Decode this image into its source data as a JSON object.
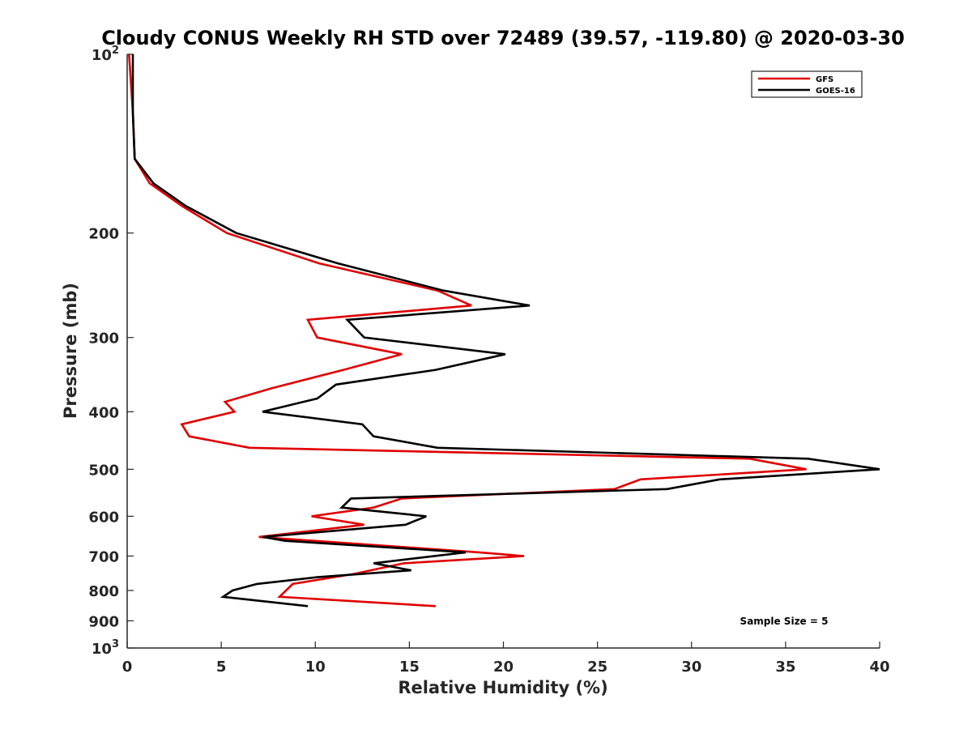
{
  "chart_data": {
    "type": "line",
    "title": "Cloudy CONUS Weekly RH STD over 72489 (39.57, -119.80) @ 2020-03-30",
    "xlabel": "Relative Humidity (%)",
    "ylabel": "Pressure (mb)",
    "xlim": [
      0,
      40
    ],
    "ylim": [
      100,
      1000
    ],
    "y_scale": "log",
    "y_reversed": true,
    "x_ticks": [
      "0",
      "5",
      "10",
      "15",
      "20",
      "25",
      "30",
      "35",
      "40"
    ],
    "y_ticks": [
      {
        "value": 100,
        "base": "10",
        "exp": "2"
      },
      {
        "value": 200,
        "label": "200"
      },
      {
        "value": 300,
        "label": "300"
      },
      {
        "value": 400,
        "label": "400"
      },
      {
        "value": 500,
        "label": "500"
      },
      {
        "value": 600,
        "label": "600"
      },
      {
        "value": 700,
        "label": "700"
      },
      {
        "value": 800,
        "label": "800"
      },
      {
        "value": 900,
        "label": "900"
      },
      {
        "value": 1000,
        "base": "10",
        "exp": "3"
      }
    ],
    "legend_position": "top-right",
    "grid": false,
    "series": [
      {
        "name": "GFS",
        "color": "#e00000",
        "points": [
          [
            0.1,
            100
          ],
          [
            0.3,
            125
          ],
          [
            0.4,
            150
          ],
          [
            1.2,
            165
          ],
          [
            2.9,
            180
          ],
          [
            5.3,
            200
          ],
          [
            10.2,
            225
          ],
          [
            16.5,
            250
          ],
          [
            18.3,
            265
          ],
          [
            9.6,
            280
          ],
          [
            10.1,
            300
          ],
          [
            14.6,
            320
          ],
          [
            11.5,
            340
          ],
          [
            7.7,
            365
          ],
          [
            5.2,
            385
          ],
          [
            5.7,
            400
          ],
          [
            2.9,
            420
          ],
          [
            3.3,
            440
          ],
          [
            6.5,
            460
          ],
          [
            33.1,
            480
          ],
          [
            36.1,
            500
          ],
          [
            27.3,
            520
          ],
          [
            25.9,
            540
          ],
          [
            14.6,
            560
          ],
          [
            13.1,
            580
          ],
          [
            9.8,
            600
          ],
          [
            12.6,
            620
          ],
          [
            7.0,
            650
          ],
          [
            18.7,
            690
          ],
          [
            21.1,
            700
          ],
          [
            14.7,
            720
          ],
          [
            12.1,
            750
          ],
          [
            8.8,
            780
          ],
          [
            8.1,
            820
          ],
          [
            16.4,
            850
          ]
        ]
      },
      {
        "name": "GOES-16",
        "color": "#000000",
        "points": [
          [
            0.3,
            100
          ],
          [
            0.3,
            125
          ],
          [
            0.4,
            150
          ],
          [
            1.4,
            165
          ],
          [
            3.1,
            180
          ],
          [
            5.8,
            200
          ],
          [
            11.2,
            225
          ],
          [
            16.8,
            250
          ],
          [
            21.4,
            265
          ],
          [
            11.7,
            280
          ],
          [
            12.6,
            300
          ],
          [
            20.1,
            320
          ],
          [
            16.4,
            340
          ],
          [
            11.1,
            360
          ],
          [
            10.1,
            380
          ],
          [
            7.2,
            400
          ],
          [
            12.5,
            420
          ],
          [
            13.1,
            440
          ],
          [
            16.5,
            460
          ],
          [
            36.2,
            480
          ],
          [
            40.0,
            500
          ],
          [
            31.5,
            520
          ],
          [
            28.7,
            540
          ],
          [
            11.9,
            560
          ],
          [
            11.4,
            580
          ],
          [
            15.9,
            600
          ],
          [
            14.8,
            620
          ],
          [
            7.2,
            650
          ],
          [
            8.4,
            660
          ],
          [
            18.0,
            690
          ],
          [
            13.1,
            720
          ],
          [
            15.1,
            740
          ],
          [
            10.1,
            760
          ],
          [
            6.9,
            780
          ],
          [
            5.6,
            800
          ],
          [
            5.1,
            820
          ],
          [
            9.6,
            850
          ]
        ]
      }
    ],
    "annotation": "Sample Size = 5"
  }
}
